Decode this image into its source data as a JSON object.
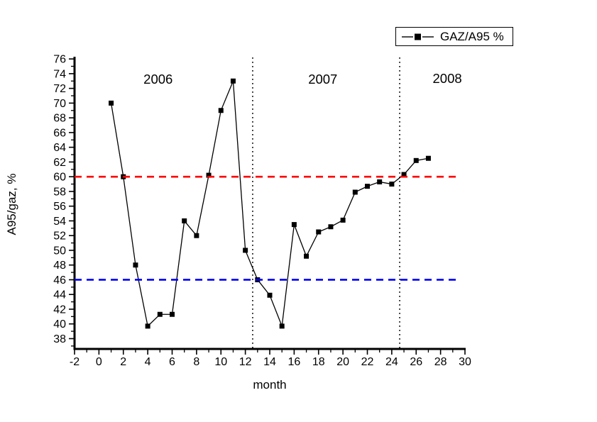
{
  "chart_data": {
    "type": "line",
    "title": "",
    "xlabel": "month",
    "ylabel": "A95/gaz, %",
    "xlim": [
      -2,
      30
    ],
    "ylim": [
      36.6,
      76.3
    ],
    "x_major_ticks": [
      -2,
      0,
      2,
      4,
      6,
      8,
      10,
      12,
      14,
      16,
      18,
      20,
      22,
      24,
      26,
      28,
      30
    ],
    "x_minor_ticks": [
      -1,
      1,
      3,
      5,
      7,
      9,
      11,
      13,
      15,
      17,
      19,
      21,
      23,
      25,
      27,
      29
    ],
    "y_major_ticks": [
      38,
      40,
      42,
      44,
      46,
      48,
      50,
      52,
      54,
      56,
      58,
      60,
      62,
      64,
      66,
      68,
      70,
      72,
      74,
      76
    ],
    "y_minor_ticks": [
      37,
      39,
      41,
      43,
      45,
      47,
      49,
      51,
      53,
      55,
      57,
      59,
      61,
      63,
      65,
      67,
      69,
      71,
      73,
      75
    ],
    "grid": "off",
    "series": [
      {
        "name": "GAZ/A95 %",
        "color": "#000000",
        "marker": "square",
        "x": [
          1,
          2,
          3,
          4,
          5,
          6,
          7,
          8,
          9,
          10,
          11,
          12,
          13,
          14,
          15,
          16,
          17,
          18,
          19,
          20,
          21,
          22,
          23,
          24,
          25,
          26,
          27
        ],
        "values": [
          70,
          60,
          48,
          39.7,
          41.3,
          41.3,
          54,
          52,
          60.2,
          69,
          73,
          50,
          46,
          43.9,
          39.7,
          53.5,
          49.2,
          52.5,
          53.2,
          54.1,
          57.9,
          58.7,
          59.3,
          59,
          60.3,
          62.2,
          62.5
        ]
      }
    ],
    "reference_lines": [
      {
        "name": "upper-threshold",
        "orientation": "horizontal",
        "value": 60,
        "color": "#ff0000",
        "style": "dashed"
      },
      {
        "name": "lower-threshold",
        "orientation": "horizontal",
        "value": 46,
        "color": "#0000ff",
        "style": "dashed"
      },
      {
        "name": "year-divider-2006-2007",
        "orientation": "vertical",
        "value": 12.6,
        "color": "#000000",
        "style": "dotted"
      },
      {
        "name": "year-divider-2007-2008",
        "orientation": "vertical",
        "value": 24.65,
        "color": "#000000",
        "style": "dotted"
      }
    ],
    "annotations": [
      {
        "text": "2006",
        "x": 4.85,
        "y": 73.2
      },
      {
        "text": "2007",
        "x": 18.35,
        "y": 73.2
      },
      {
        "text": "2008",
        "x": 28.55,
        "y": 73.3
      }
    ],
    "legend": {
      "label": "GAZ/A95 %",
      "position": "top-right"
    }
  }
}
